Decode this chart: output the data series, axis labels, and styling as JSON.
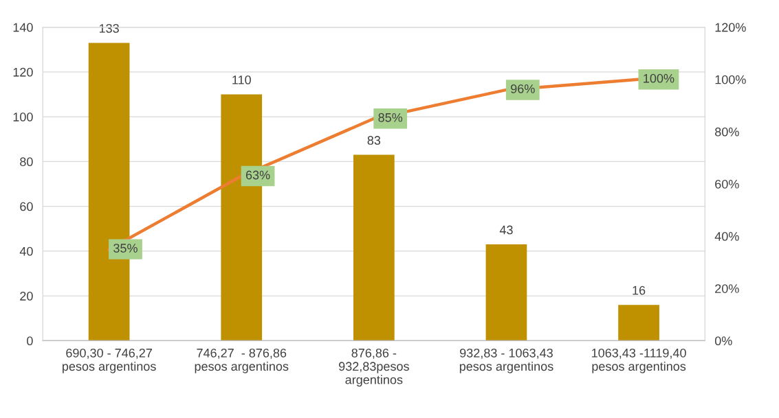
{
  "chart_data": {
    "type": "bar",
    "categories": [
      "690,30 - 746,27\npesos argentinos",
      "746,27  - 876,86\npesos argentinos",
      "876,86 -\n932,83pesos\nargentinos",
      "932,83 - 1063,43\npesos argentinos",
      "1063,43 -1119,40\npesos argentinos"
    ],
    "series": [
      {
        "color": "#bf9000",
        "values": [
          133,
          110,
          83,
          43,
          16
        ],
        "value_labels": [
          "133",
          "110",
          "83",
          "43",
          "16"
        ]
      },
      {
        "type": "line",
        "axis": "y2",
        "color": "#ed7d31",
        "values": [
          35,
          63,
          85,
          96,
          100
        ],
        "value_labels": [
          "35%",
          "63%",
          "85%",
          "96%",
          "100%"
        ]
      }
    ],
    "ylim": [
      0,
      140
    ],
    "yticks": [
      0,
      20,
      40,
      60,
      80,
      100,
      120,
      140
    ],
    "y2lim": [
      0,
      120
    ],
    "y2ticks": [
      {
        "value": 0,
        "label": "0%"
      },
      {
        "value": 20,
        "label": "20%"
      },
      {
        "value": 40,
        "label": "40%"
      },
      {
        "value": 60,
        "label": "60%"
      },
      {
        "value": 80,
        "label": "80%"
      },
      {
        "value": 100,
        "label": "100%"
      },
      {
        "value": 120,
        "label": "120%"
      }
    ],
    "grid": "y",
    "marker": "none",
    "line_style": "solid"
  }
}
